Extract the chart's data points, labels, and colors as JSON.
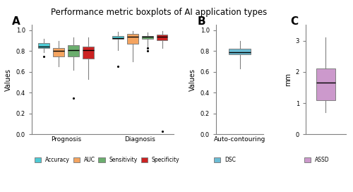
{
  "title": "Performance metric boxplots of AI application types",
  "panel_A_label": "A",
  "panel_B_label": "B",
  "panel_C_label": "C",
  "panel_A_xlabel": "Prognosis",
  "panel_A_xlabel2": "Diagnosis",
  "panel_A_ylabel": "Values",
  "panel_B_xlabel": "Auto-contouring",
  "panel_B_ylabel": "Values",
  "panel_C_ylabel": "mm",
  "legend_A": [
    "Accuracy",
    "AUC",
    "Sensitivity",
    "Specificity"
  ],
  "legend_B": [
    "DSC"
  ],
  "legend_C": [
    "ASSD"
  ],
  "colors": {
    "Accuracy": "#4ECAD4",
    "AUC": "#F4A460",
    "Sensitivity": "#6BAE6E",
    "Specificity": "#CC2222",
    "DSC": "#6BBCD4",
    "ASSD": "#CC99CC"
  },
  "boxplot_data": {
    "Prognosis_Accuracy": {
      "q1": 0.83,
      "median": 0.845,
      "q3": 0.875,
      "whislo": 0.79,
      "whishi": 0.915,
      "fliers": [
        0.75
      ]
    },
    "Prognosis_AUC": {
      "q1": 0.75,
      "median": 0.805,
      "q3": 0.83,
      "whislo": 0.65,
      "whishi": 0.9,
      "fliers": []
    },
    "Prognosis_Sensitivity": {
      "q1": 0.75,
      "median": 0.81,
      "q3": 0.855,
      "whislo": 0.62,
      "whishi": 0.93,
      "fliers": [
        0.35
      ]
    },
    "Prognosis_Specificity": {
      "q1": 0.73,
      "median": 0.81,
      "q3": 0.84,
      "whislo": 0.53,
      "whishi": 0.93,
      "fliers": []
    },
    "Diagnosis_Accuracy": {
      "q1": 0.915,
      "median": 0.925,
      "q3": 0.945,
      "whislo": 0.81,
      "whishi": 0.985,
      "fliers": [
        0.65
      ]
    },
    "Diagnosis_AUC": {
      "q1": 0.87,
      "median": 0.94,
      "q3": 0.965,
      "whislo": 0.7,
      "whishi": 0.99,
      "fliers": []
    },
    "Diagnosis_Sensitivity": {
      "q1": 0.915,
      "median": 0.935,
      "q3": 0.945,
      "whislo": 0.82,
      "whishi": 0.975,
      "fliers": [
        0.83,
        0.8
      ]
    },
    "Diagnosis_Specificity": {
      "q1": 0.905,
      "median": 0.935,
      "q3": 0.955,
      "whislo": 0.83,
      "whishi": 0.99,
      "fliers": [
        0.03
      ]
    },
    "DSC": {
      "q1": 0.77,
      "median": 0.785,
      "q3": 0.82,
      "whislo": 0.63,
      "whishi": 0.9,
      "fliers": []
    },
    "ASSD": {
      "q1": 1.1,
      "median": 1.65,
      "q3": 2.1,
      "whislo": 0.7,
      "whishi": 3.1,
      "fliers": []
    }
  },
  "ylim_A": [
    0.0,
    1.05
  ],
  "ylim_B": [
    0.0,
    1.05
  ],
  "ylim_C": [
    0.0,
    3.5
  ],
  "yticks_A": [
    0.0,
    0.2,
    0.4,
    0.6,
    0.8,
    1.0
  ],
  "yticks_B": [
    0.0,
    0.2,
    0.4,
    0.6,
    0.8,
    1.0
  ],
  "yticks_C": [
    0.0,
    1.0,
    2.0,
    3.0
  ]
}
